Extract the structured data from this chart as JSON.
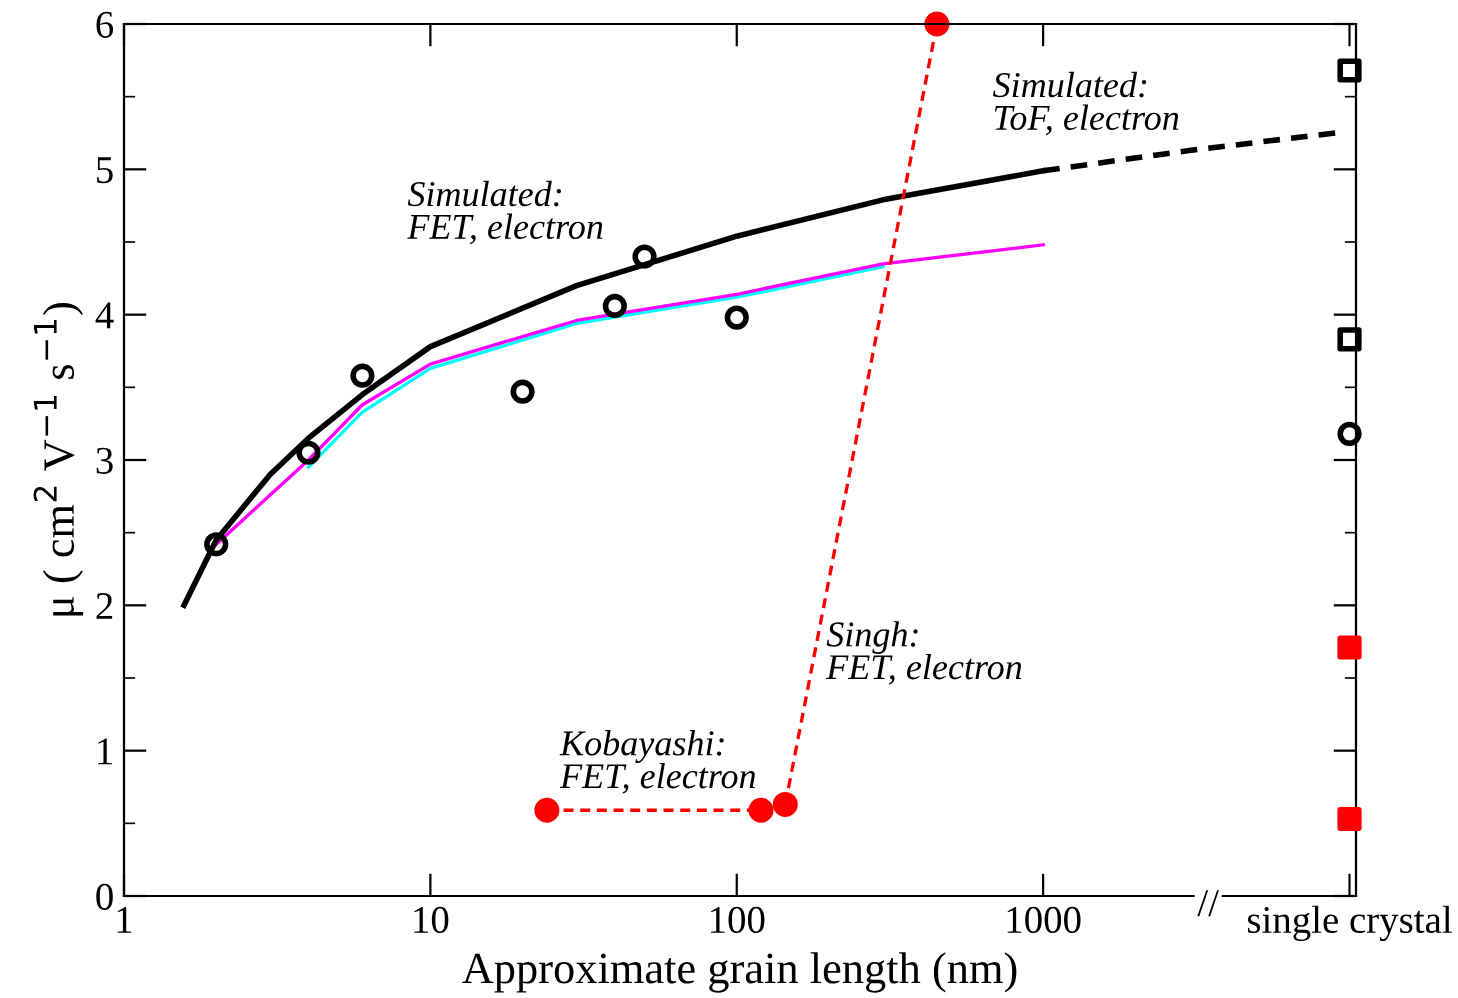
{
  "chart_data": {
    "type": "line",
    "xlabel": "Approximate grain length (nm)",
    "ylabel": "μ ( cm$^{2}$ V$^{−1}$ s$^{−1}$)",
    "log": "x",
    "xlim": [
      1,
      10500
    ],
    "xticks": [
      1,
      10,
      100,
      1000,
      {
        "value": 10000,
        "label": "single crystal"
      }
    ],
    "ylim": [
      0,
      6
    ],
    "yticks": [
      0,
      1,
      2,
      3,
      4,
      5,
      6
    ],
    "grid": false,
    "legend": false,
    "series": [
      {
        "color": "#00ffff",
        "x": [
          4,
          6,
          10,
          30,
          100,
          300
        ],
        "values": [
          2.95,
          3.33,
          3.63,
          3.94,
          4.12,
          4.33
        ],
        "marker": "none",
        "line_style": "solid"
      },
      {
        "color": "#ff00ff",
        "x": [
          2,
          4,
          6,
          10,
          30,
          100,
          300,
          1000
        ],
        "values": [
          2.42,
          3.0,
          3.38,
          3.66,
          3.96,
          4.14,
          4.35,
          4.48
        ],
        "marker": "none",
        "line_style": "solid"
      },
      {
        "color": "#000000",
        "x": [
          1.57,
          2,
          3,
          4,
          6,
          10,
          30,
          100,
          300,
          1000
        ],
        "values": [
          2.0,
          2.45,
          2.9,
          3.15,
          3.45,
          3.78,
          4.2,
          4.54,
          4.79,
          4.99
        ],
        "marker": "none",
        "line_style": "solid"
      },
      {
        "color": "#000000",
        "x": [
          1000,
          3000,
          9000
        ],
        "values": [
          4.99,
          5.13,
          5.25
        ],
        "marker": "none",
        "line_style": "dashed"
      },
      {
        "type": "scatter",
        "color": "#000000",
        "x": [
          2,
          4,
          6,
          20,
          40,
          50,
          100,
          10000
        ],
        "values": [
          2.42,
          3.05,
          3.58,
          3.47,
          4.06,
          4.4,
          3.98,
          3.18
        ],
        "marker": "circle"
      },
      {
        "type": "scatter",
        "color": "#000000",
        "x": [
          10000,
          10000
        ],
        "values": [
          5.68,
          3.83
        ],
        "marker": "square"
      },
      {
        "type": "scatter",
        "color": "#ff0000",
        "x": [
          10000,
          10000
        ],
        "values": [
          1.71,
          0.53
        ],
        "marker": "square"
      },
      {
        "color": "#ff0000",
        "x": [
          24,
          120
        ],
        "values": [
          0.59,
          0.59
        ],
        "marker": "circle",
        "line_style": "dashed"
      },
      {
        "color": "#ff0000",
        "x": [
          144,
          450
        ],
        "values": [
          0.63,
          6.0
        ],
        "marker": "circle",
        "line_style": "dashed"
      }
    ],
    "annotations": [
      "Simulated:\nFET, electron",
      "Simulated:\nToF, electron",
      {
        "text": "Kobayashi:\nFET, electron",
        "x": 26.5,
        "y": 0.69
      },
      "Singh:\nFET, electron",
      "//"
    ]
  }
}
